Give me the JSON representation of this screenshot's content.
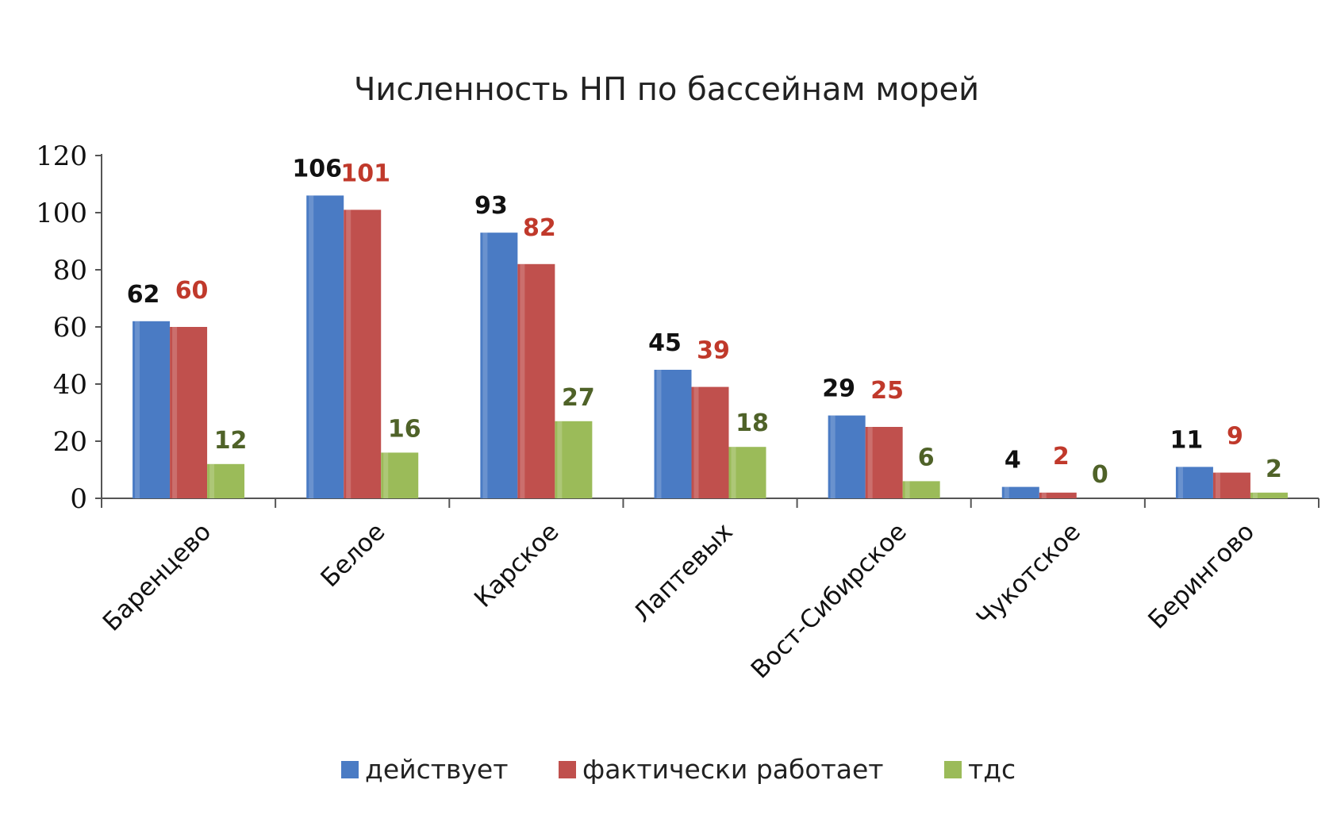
{
  "chart_data": {
    "type": "bar",
    "title": "Численность НП по бассейнам морей",
    "categories": [
      "Баренцево",
      "Белое",
      "Карское",
      "Лаптевых",
      "Вост-Сибирское",
      "Чукотское",
      "Берингово"
    ],
    "series": [
      {
        "name": "действует",
        "values": [
          62,
          106,
          93,
          45,
          29,
          4,
          11
        ],
        "color": "#4a7bc4",
        "label_color": "#111111"
      },
      {
        "name": "фактически работает",
        "values": [
          60,
          101,
          82,
          39,
          25,
          2,
          9
        ],
        "color": "#c0504d",
        "label_color": "#c0392b"
      },
      {
        "name": "тдс",
        "values": [
          12,
          16,
          27,
          18,
          6,
          0,
          2
        ],
        "color": "#9bbb59",
        "label_color": "#4f6228"
      }
    ],
    "ylim": [
      0,
      120
    ],
    "yticks": [
      0,
      20,
      40,
      60,
      80,
      100,
      120
    ],
    "legend_position": "bottom",
    "grid": false
  }
}
